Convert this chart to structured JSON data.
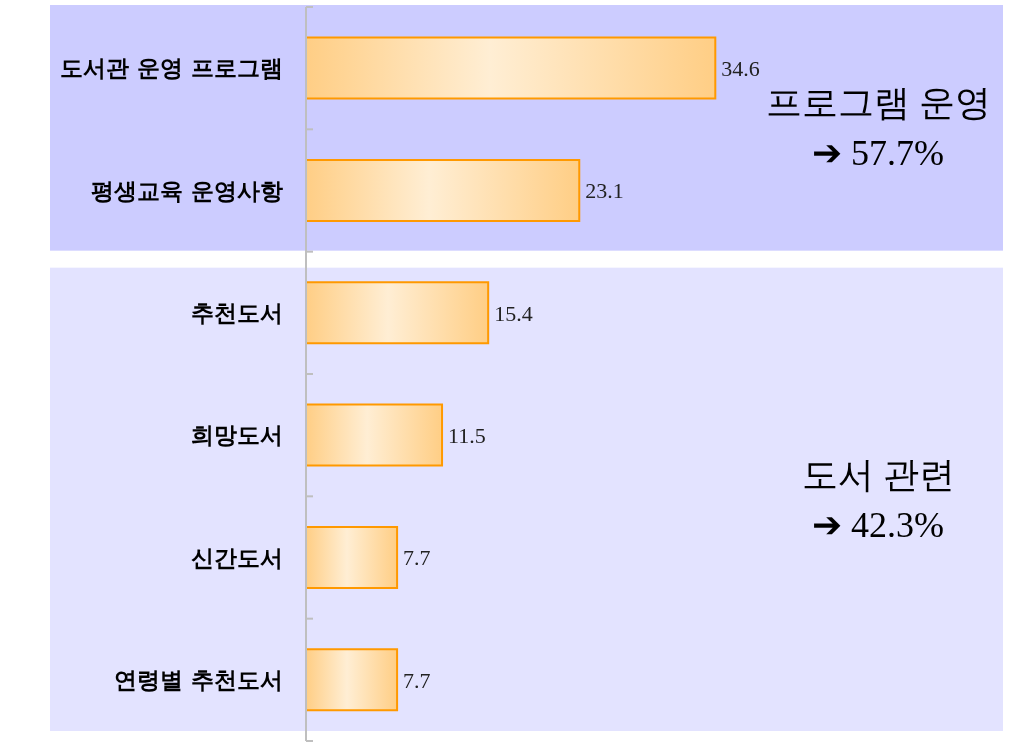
{
  "chart_data": {
    "type": "bar",
    "orientation": "horizontal",
    "categories": [
      "도서관 운영 프로그램",
      "평생교육 운영사항",
      "추천도서",
      "희망도서",
      "신간도서",
      "연령별 추천도서"
    ],
    "values": [
      34.6,
      23.1,
      15.4,
      11.5,
      7.7,
      7.7
    ],
    "color": "#ff9900",
    "tick_labels": "y",
    "data_labels": true,
    "bands": [
      {
        "axis": "y",
        "from": "도서관 운영 프로그램",
        "to": "평생교육 운영사항",
        "label": "프로그램 운영\n➔ 57.7%",
        "color": "#ccccff"
      },
      {
        "axis": "y",
        "from": "추천도서",
        "to": "연령별 추천도서",
        "label": "도서 관련\n➔ 42.3%",
        "color": "#e3e3ff"
      }
    ]
  }
}
